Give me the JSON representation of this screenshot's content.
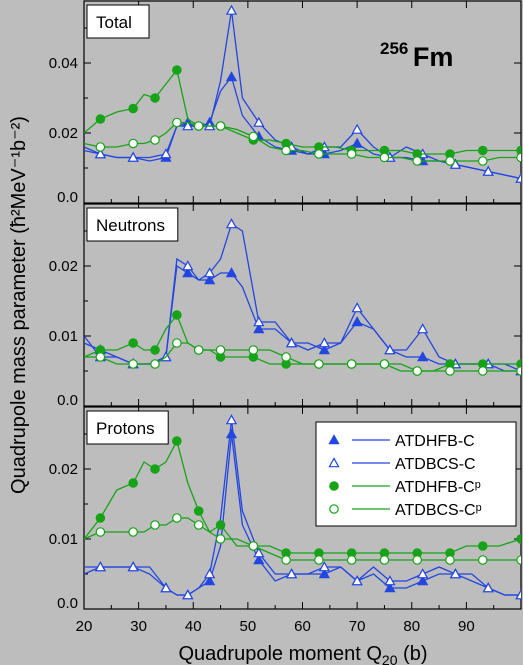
{
  "figure": {
    "xlabel": "Quadrupole moment Q",
    "xlabel_sub": "20",
    "xlabel_unit": " (b)",
    "ylabel": "Quadrupole mass parameter (ħ²MeV⁻¹b⁻²)",
    "nucleus_mass": "256",
    "nucleus_symbol": "Fm",
    "colors": {
      "blue": "#2346e0",
      "green": "#17a317"
    },
    "legend_placement": "center-right (bottom panel)"
  },
  "chart_data": [
    {
      "type": "line",
      "title": "Total",
      "x_ticks": [
        20,
        30,
        40,
        50,
        60,
        70,
        80,
        90
      ],
      "y_ticks": [
        "0.0",
        "0.02",
        "0.04"
      ],
      "xlim": [
        20,
        100
      ],
      "ylim": [
        0,
        0.058
      ],
      "grid": false,
      "series": [
        {
          "name": "ATDHFB-C",
          "x": [
            20,
            23,
            26,
            29,
            32,
            35,
            37,
            39,
            41,
            43,
            45,
            47,
            49,
            52,
            55,
            58,
            61,
            64,
            67,
            70,
            73,
            76,
            79,
            82,
            85,
            88,
            91,
            94,
            97,
            100
          ],
          "y": [
            0.016,
            0.014,
            0.013,
            0.013,
            0.012,
            0.013,
            0.022,
            0.023,
            0.021,
            0.023,
            0.032,
            0.036,
            0.025,
            0.019,
            0.016,
            0.015,
            0.014,
            0.014,
            0.015,
            0.017,
            0.014,
            0.013,
            0.013,
            0.012,
            0.012,
            0.011,
            0.01,
            0.009,
            0.008,
            0.007
          ]
        },
        {
          "name": "ATDBCS-C",
          "x": [
            20,
            23,
            26,
            29,
            32,
            35,
            37,
            39,
            41,
            43,
            45,
            47,
            49,
            52,
            55,
            58,
            61,
            64,
            67,
            70,
            73,
            76,
            79,
            82,
            85,
            88,
            91,
            94,
            97,
            100
          ],
          "y": [
            0.015,
            0.014,
            0.013,
            0.013,
            0.013,
            0.014,
            0.022,
            0.022,
            0.023,
            0.022,
            0.035,
            0.055,
            0.03,
            0.023,
            0.018,
            0.016,
            0.014,
            0.016,
            0.016,
            0.021,
            0.016,
            0.013,
            0.016,
            0.014,
            0.012,
            0.011,
            0.01,
            0.009,
            0.008,
            0.007
          ]
        },
        {
          "name": "ATDHFB-Cᵖ",
          "x": [
            20,
            23,
            26,
            29,
            31,
            33,
            35,
            37,
            39,
            41,
            43,
            45,
            48,
            51,
            54,
            57,
            60,
            63,
            66,
            69,
            72,
            75,
            78,
            81,
            84,
            87,
            90,
            93,
            96,
            100
          ],
          "y": [
            0.02,
            0.024,
            0.026,
            0.027,
            0.031,
            0.03,
            0.034,
            0.038,
            0.024,
            0.022,
            0.022,
            0.022,
            0.02,
            0.018,
            0.018,
            0.017,
            0.016,
            0.016,
            0.016,
            0.015,
            0.015,
            0.015,
            0.015,
            0.014,
            0.014,
            0.014,
            0.015,
            0.015,
            0.015,
            0.015
          ]
        },
        {
          "name": "ATDBCS-Cᵖ",
          "x": [
            20,
            23,
            26,
            29,
            31,
            33,
            35,
            37,
            39,
            41,
            43,
            45,
            48,
            51,
            54,
            57,
            60,
            63,
            66,
            69,
            72,
            75,
            78,
            81,
            84,
            87,
            90,
            93,
            96,
            100
          ],
          "y": [
            0.017,
            0.016,
            0.016,
            0.017,
            0.017,
            0.018,
            0.02,
            0.023,
            0.023,
            0.022,
            0.022,
            0.022,
            0.021,
            0.019,
            0.016,
            0.015,
            0.015,
            0.014,
            0.014,
            0.014,
            0.013,
            0.013,
            0.013,
            0.012,
            0.012,
            0.012,
            0.012,
            0.012,
            0.013,
            0.013
          ]
        }
      ]
    },
    {
      "type": "line",
      "title": "Neutrons",
      "x_ticks": [
        20,
        30,
        40,
        50,
        60,
        70,
        80,
        90
      ],
      "y_ticks": [
        "0.0",
        "0.01",
        "0.02"
      ],
      "xlim": [
        20,
        100
      ],
      "ylim": [
        0,
        0.029
      ],
      "grid": false,
      "series": [
        {
          "name": "ATDHFB-C",
          "x": [
            20,
            23,
            26,
            29,
            32,
            35,
            37,
            39,
            41,
            43,
            45,
            47,
            49,
            52,
            55,
            58,
            61,
            64,
            67,
            70,
            73,
            76,
            79,
            82,
            85,
            88,
            91,
            94,
            97,
            100
          ],
          "y": [
            0.009,
            0.008,
            0.007,
            0.006,
            0.006,
            0.007,
            0.02,
            0.019,
            0.018,
            0.018,
            0.019,
            0.019,
            0.017,
            0.011,
            0.011,
            0.009,
            0.009,
            0.008,
            0.009,
            0.012,
            0.011,
            0.008,
            0.007,
            0.007,
            0.006,
            0.006,
            0.006,
            0.006,
            0.006,
            0.005
          ]
        },
        {
          "name": "ATDBCS-C",
          "x": [
            20,
            23,
            26,
            29,
            32,
            35,
            37,
            39,
            41,
            43,
            45,
            47,
            49,
            52,
            55,
            58,
            61,
            64,
            67,
            70,
            73,
            76,
            79,
            82,
            85,
            88,
            91,
            94,
            97,
            100
          ],
          "y": [
            0.01,
            0.007,
            0.007,
            0.006,
            0.006,
            0.007,
            0.021,
            0.02,
            0.018,
            0.019,
            0.021,
            0.026,
            0.025,
            0.012,
            0.012,
            0.009,
            0.008,
            0.009,
            0.009,
            0.014,
            0.011,
            0.008,
            0.008,
            0.011,
            0.007,
            0.006,
            0.006,
            0.006,
            0.005,
            0.005
          ]
        },
        {
          "name": "ATDHFB-Cᵖ",
          "x": [
            20,
            23,
            26,
            29,
            31,
            33,
            35,
            37,
            39,
            41,
            43,
            45,
            48,
            51,
            54,
            57,
            60,
            63,
            66,
            69,
            72,
            75,
            78,
            81,
            84,
            87,
            90,
            93,
            96,
            100
          ],
          "y": [
            0.007,
            0.008,
            0.008,
            0.009,
            0.008,
            0.008,
            0.011,
            0.013,
            0.009,
            0.008,
            0.008,
            0.007,
            0.007,
            0.007,
            0.006,
            0.006,
            0.006,
            0.006,
            0.006,
            0.006,
            0.006,
            0.006,
            0.006,
            0.005,
            0.005,
            0.006,
            0.006,
            0.006,
            0.006,
            0.006
          ]
        },
        {
          "name": "ATDBCS-Cᵖ",
          "x": [
            20,
            23,
            26,
            29,
            31,
            33,
            35,
            37,
            39,
            41,
            43,
            45,
            48,
            51,
            54,
            57,
            60,
            63,
            66,
            69,
            72,
            75,
            78,
            81,
            84,
            87,
            90,
            93,
            96,
            100
          ],
          "y": [
            0.007,
            0.007,
            0.006,
            0.006,
            0.006,
            0.006,
            0.007,
            0.009,
            0.009,
            0.008,
            0.008,
            0.008,
            0.008,
            0.008,
            0.008,
            0.007,
            0.006,
            0.006,
            0.006,
            0.006,
            0.006,
            0.006,
            0.005,
            0.005,
            0.005,
            0.005,
            0.005,
            0.005,
            0.005,
            0.005
          ]
        }
      ]
    },
    {
      "type": "line",
      "title": "Protons",
      "x_ticks": [
        20,
        30,
        40,
        50,
        60,
        70,
        80,
        90
      ],
      "x_tick_labels": [
        "20",
        "30",
        "40",
        "50",
        "60",
        "70",
        "80",
        "90"
      ],
      "y_ticks": [
        "0.0",
        "0.01",
        "0.02"
      ],
      "xlim": [
        20,
        100
      ],
      "ylim": [
        0,
        0.029
      ],
      "grid": false,
      "series": [
        {
          "name": "ATDHFB-C",
          "x": [
            20,
            23,
            26,
            29,
            32,
            35,
            37,
            39,
            41,
            43,
            45,
            47,
            49,
            52,
            55,
            58,
            61,
            64,
            67,
            70,
            73,
            76,
            79,
            82,
            85,
            88,
            91,
            94,
            97,
            100
          ],
          "y": [
            0.005,
            0.006,
            0.006,
            0.006,
            0.005,
            0.003,
            0.002,
            0.002,
            0.003,
            0.004,
            0.009,
            0.025,
            0.012,
            0.007,
            0.004,
            0.005,
            0.005,
            0.005,
            0.006,
            0.004,
            0.005,
            0.003,
            0.003,
            0.004,
            0.005,
            0.005,
            0.004,
            0.003,
            0.002,
            0.002
          ]
        },
        {
          "name": "ATDBCS-C",
          "x": [
            20,
            23,
            26,
            29,
            32,
            35,
            37,
            39,
            41,
            43,
            45,
            47,
            49,
            52,
            55,
            58,
            61,
            64,
            67,
            70,
            73,
            76,
            79,
            82,
            85,
            88,
            91,
            94,
            97,
            100
          ],
          "y": [
            0.006,
            0.006,
            0.006,
            0.006,
            0.006,
            0.003,
            0.002,
            0.002,
            0.003,
            0.005,
            0.013,
            0.027,
            0.014,
            0.008,
            0.005,
            0.005,
            0.005,
            0.006,
            0.006,
            0.004,
            0.006,
            0.004,
            0.004,
            0.005,
            0.006,
            0.005,
            0.005,
            0.003,
            0.002,
            0.002
          ]
        },
        {
          "name": "ATDHFB-Cᵖ",
          "x": [
            20,
            23,
            26,
            29,
            31,
            33,
            35,
            37,
            39,
            41,
            43,
            45,
            48,
            51,
            54,
            57,
            60,
            63,
            66,
            69,
            72,
            75,
            78,
            81,
            84,
            87,
            90,
            93,
            96,
            100
          ],
          "y": [
            0.01,
            0.013,
            0.017,
            0.018,
            0.021,
            0.02,
            0.021,
            0.024,
            0.018,
            0.014,
            0.011,
            0.012,
            0.009,
            0.009,
            0.009,
            0.008,
            0.008,
            0.008,
            0.008,
            0.008,
            0.008,
            0.008,
            0.008,
            0.008,
            0.008,
            0.008,
            0.009,
            0.009,
            0.009,
            0.01
          ]
        },
        {
          "name": "ATDBCS-Cᵖ",
          "x": [
            20,
            23,
            26,
            29,
            31,
            33,
            35,
            37,
            39,
            41,
            43,
            45,
            48,
            51,
            54,
            57,
            60,
            63,
            66,
            69,
            72,
            75,
            78,
            81,
            84,
            87,
            90,
            93,
            96,
            100
          ],
          "y": [
            0.01,
            0.011,
            0.011,
            0.011,
            0.011,
            0.012,
            0.012,
            0.013,
            0.013,
            0.012,
            0.011,
            0.01,
            0.01,
            0.009,
            0.008,
            0.007,
            0.007,
            0.007,
            0.007,
            0.007,
            0.007,
            0.007,
            0.007,
            0.007,
            0.007,
            0.007,
            0.007,
            0.007,
            0.007,
            0.007
          ]
        }
      ]
    }
  ]
}
